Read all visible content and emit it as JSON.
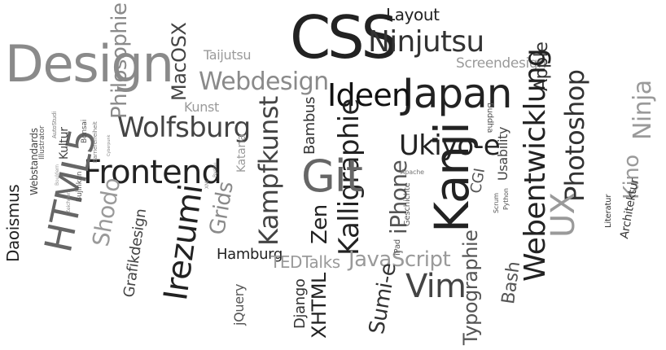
{
  "words": [
    {
      "text": "Design",
      "color": "#8a8a8a"
    },
    {
      "text": "CSS",
      "color": "#222222"
    },
    {
      "text": "Layout",
      "color": "#222222"
    },
    {
      "text": "Ninjutsu",
      "color": "#333333"
    },
    {
      "text": "Screendesign",
      "color": "#9a9a9a"
    },
    {
      "text": "Apple",
      "color": "#333333"
    },
    {
      "text": "Japan",
      "color": "#222222"
    },
    {
      "text": "Ideen",
      "color": "#111111"
    },
    {
      "text": "Photoshop",
      "color": "#333333"
    },
    {
      "text": "Ninja",
      "color": "#9a9a9a"
    },
    {
      "text": "Kino",
      "color": "#9a9a9a"
    },
    {
      "text": "UX",
      "color": "#9a9a9a"
    },
    {
      "text": "Webentwicklung",
      "color": "#222222"
    },
    {
      "text": "Usability",
      "color": "#444444"
    },
    {
      "text": "Buddha",
      "color": "#555555"
    },
    {
      "text": "Kanji",
      "color": "#222222"
    },
    {
      "text": "Ukiyo-e",
      "color": "#222222"
    },
    {
      "text": "iPhone",
      "color": "#555555"
    },
    {
      "text": "Kalligraphie",
      "color": "#222222"
    },
    {
      "text": "Zen",
      "color": "#222222"
    },
    {
      "text": "Git",
      "color": "#666666"
    },
    {
      "text": "Bambus",
      "color": "#333333"
    },
    {
      "text": "Kampfkunst",
      "color": "#444444"
    },
    {
      "text": "Webdesign",
      "color": "#8a8a8a"
    },
    {
      "text": "Taijutsu",
      "color": "#9a9a9a"
    },
    {
      "text": "MacOSX",
      "color": "#444444"
    },
    {
      "text": "Kunst",
      "color": "#9a9a9a"
    },
    {
      "text": "Philosophie",
      "color": "#8a8a8a"
    },
    {
      "text": "Wolfsburg",
      "color": "#444444"
    },
    {
      "text": "Frontend",
      "color": "#222222"
    },
    {
      "text": "HTML5",
      "color": "#666666"
    },
    {
      "text": "Webstandards",
      "color": "#444444"
    },
    {
      "text": "Illustrator",
      "color": "#555555"
    },
    {
      "text": "AutoStudi",
      "color": "#777777"
    },
    {
      "text": "Bonsai",
      "color": "#555555"
    },
    {
      "text": "Kultur",
      "color": "#444444"
    },
    {
      "text": "Barrierefreiheit",
      "color": "#777777"
    },
    {
      "text": "Cyberpunk",
      "color": "#888888"
    },
    {
      "text": "Bujinkan",
      "color": "#555555"
    },
    {
      "text": "Daoismus",
      "color": "#222222"
    },
    {
      "text": "Shodo",
      "color": "#9a9a9a"
    },
    {
      "text": "Grafikdesign",
      "color": "#444444"
    },
    {
      "text": "Irezumi",
      "color": "#222222"
    },
    {
      "text": "Grids",
      "color": "#8a8a8a"
    },
    {
      "text": "Katana",
      "color": "#9a9a9a"
    },
    {
      "text": "Bydou",
      "color": "#888888"
    },
    {
      "text": "XML",
      "color": "#888888"
    },
    {
      "text": "Hamburg",
      "color": "#222222"
    },
    {
      "text": "jQuery",
      "color": "#555555"
    },
    {
      "text": "TEDTalks",
      "color": "#9a9a9a"
    },
    {
      "text": "JavaScript",
      "color": "#9a9a9a"
    },
    {
      "text": "Django",
      "color": "#333333"
    },
    {
      "text": "XHTML",
      "color": "#222222"
    },
    {
      "text": "Sumi-e",
      "color": "#333333"
    },
    {
      "text": "Vim",
      "color": "#444444"
    },
    {
      "text": "iPad",
      "color": "#555555"
    },
    {
      "text": "Geschichte",
      "color": "#555555"
    },
    {
      "text": "Apache",
      "color": "#777777"
    },
    {
      "text": "CGI",
      "color": "#555555"
    },
    {
      "text": "Typographie",
      "color": "#555555"
    },
    {
      "text": "Bash",
      "color": "#555555"
    },
    {
      "text": "Scrum",
      "color": "#555555"
    },
    {
      "text": "Python",
      "color": "#555555"
    },
    {
      "text": "Literatur",
      "color": "#333333"
    },
    {
      "text": "Architektur",
      "color": "#333333"
    },
    {
      "text": "Zeichnen",
      "color": "#888888"
    },
    {
      "text": "Bouldern",
      "color": "#999999"
    }
  ]
}
